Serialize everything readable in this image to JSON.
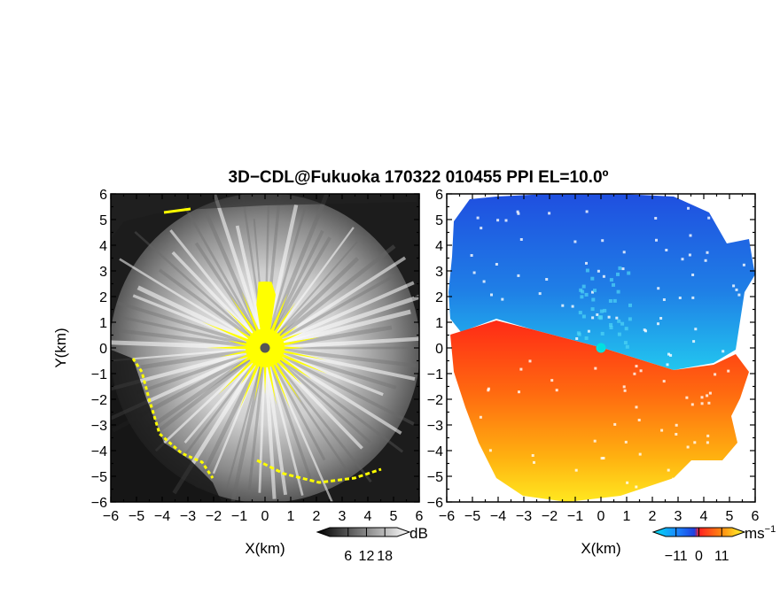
{
  "title": "3D−CDL@Fukuoka 170322 010455 PPI EL=10.0º",
  "colors": {
    "highlight": "#ffff00",
    "radar_center": "#555555",
    "doppler_center": "#00e0e0"
  },
  "chart_data": [
    {
      "type": "heatmap",
      "panel": "left",
      "quantity": "backscatter intensity",
      "xlabel": "X(km)",
      "ylabel": "Y(km)",
      "xlim": [
        -6,
        6
      ],
      "ylim": [
        -6,
        6
      ],
      "xticks": [
        "−6",
        "−5",
        "−4",
        "−3",
        "−2",
        "−1",
        "0",
        "1",
        "2",
        "3",
        "4",
        "5",
        "6"
      ],
      "yticks": [
        "6",
        "5",
        "4",
        "3",
        "2",
        "1",
        "0",
        "−1",
        "−2",
        "−3",
        "−4",
        "−5",
        "−6"
      ],
      "colorbar": {
        "unit": "dB",
        "ticks": [
          "6",
          "12",
          "18"
        ],
        "range": [
          0,
          22
        ],
        "colormap": "grayscale"
      }
    },
    {
      "type": "heatmap",
      "panel": "right",
      "quantity": "radial velocity",
      "xlabel": "X(km)",
      "ylabel": "",
      "xlim": [
        -6,
        6
      ],
      "ylim": [
        -6,
        6
      ],
      "xticks": [
        "−6",
        "−5",
        "−4",
        "−3",
        "−2",
        "−1",
        "0",
        "1",
        "2",
        "3",
        "4",
        "5",
        "6"
      ],
      "yticks": [
        "6",
        "5",
        "4",
        "3",
        "2",
        "1",
        "0",
        "−1",
        "−2",
        "−3",
        "−4",
        "−5",
        "−6"
      ],
      "colorbar": {
        "unit": "ms",
        "unit_exp": "−1",
        "ticks": [
          "−11",
          "0",
          "11"
        ],
        "range": [
          -16,
          16
        ],
        "colormap": "blue-red-yellow"
      }
    }
  ]
}
